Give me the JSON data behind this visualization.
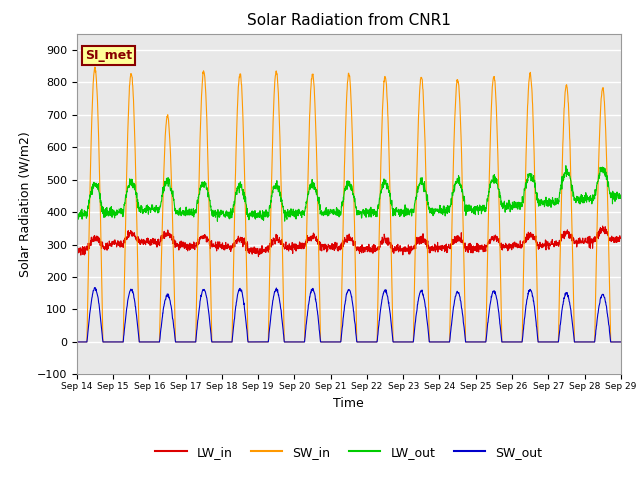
{
  "title": "Solar Radiation from CNR1",
  "xlabel": "Time",
  "ylabel": "Solar Radiation (W/m2)",
  "ylim": [
    -100,
    950
  ],
  "yticks": [
    -100,
    0,
    100,
    200,
    300,
    400,
    500,
    600,
    700,
    800,
    900
  ],
  "start_day": 14,
  "end_day": 29,
  "num_days": 15,
  "points_per_day": 144,
  "sw_in_peak": 860,
  "lw_out_base": 390,
  "lw_out_day_amp": 90,
  "sw_out_peak": 170,
  "line_colors": {
    "LW_in": "#dd0000",
    "SW_in": "#ff9900",
    "LW_out": "#00cc00",
    "SW_out": "#0000cc"
  },
  "bg_color": "#e8e8e8",
  "fig_bg_color": "#ffffff",
  "grid_color": "#ffffff",
  "annotation_text": "SI_met",
  "annotation_bg": "#ffff99",
  "annotation_border": "#880000",
  "xtick_labels": [
    "Sep 14",
    "Sep 15",
    "Sep 16",
    "Sep 17",
    "Sep 18",
    "Sep 19",
    "Sep 20",
    "Sep 21",
    "Sep 22",
    "Sep 23",
    "Sep 24",
    "Sep 25",
    "Sep 26",
    "Sep 27",
    "Sep 28",
    "Sep 29"
  ]
}
